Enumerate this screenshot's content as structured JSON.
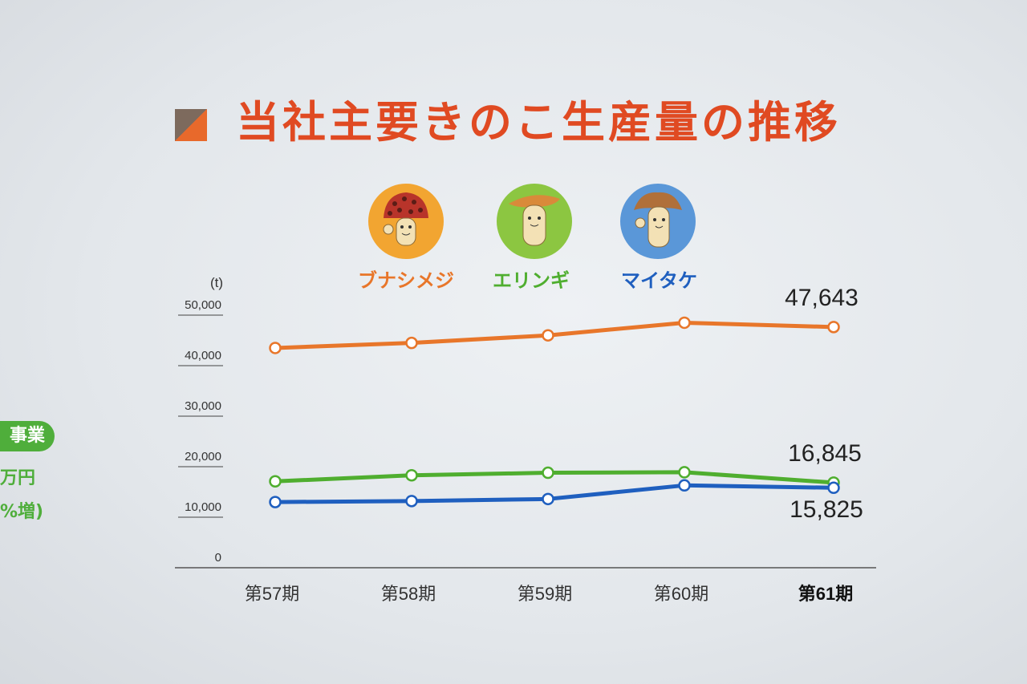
{
  "title": "当社主要きのこ生産量の推移",
  "side": {
    "badge": "事業",
    "line1": "万円",
    "line2": "%増)"
  },
  "colors": {
    "bunashimeji": "#e8762a",
    "eringi": "#4fae2f",
    "maitake": "#1f5fbf",
    "title": "#e04a22"
  },
  "chart_data": {
    "type": "line",
    "unit": "(t)",
    "categories": [
      "第57期",
      "第58期",
      "第59期",
      "第60期",
      "第61期"
    ],
    "highlight_category_index": 4,
    "ylim": [
      0,
      50000
    ],
    "yticks": [
      "0",
      "10,000",
      "20,000",
      "30,000",
      "40,000",
      "50,000"
    ],
    "series": [
      {
        "name": "ブナシメジ",
        "color": "#e8762a",
        "mascot": "bunashimeji-mascot-icon",
        "values": [
          43500,
          44500,
          46000,
          48500,
          47643
        ]
      },
      {
        "name": "エリンギ",
        "color": "#4fae2f",
        "mascot": "eringi-mascot-icon",
        "values": [
          17100,
          18300,
          18800,
          18900,
          16845
        ]
      },
      {
        "name": "マイタケ",
        "color": "#1f5fbf",
        "mascot": "maitake-mascot-icon",
        "values": [
          13000,
          13200,
          13600,
          16300,
          15825
        ]
      }
    ],
    "end_labels": [
      "47,643",
      "16,845",
      "15,825"
    ],
    "grid": false,
    "legend": "top"
  }
}
